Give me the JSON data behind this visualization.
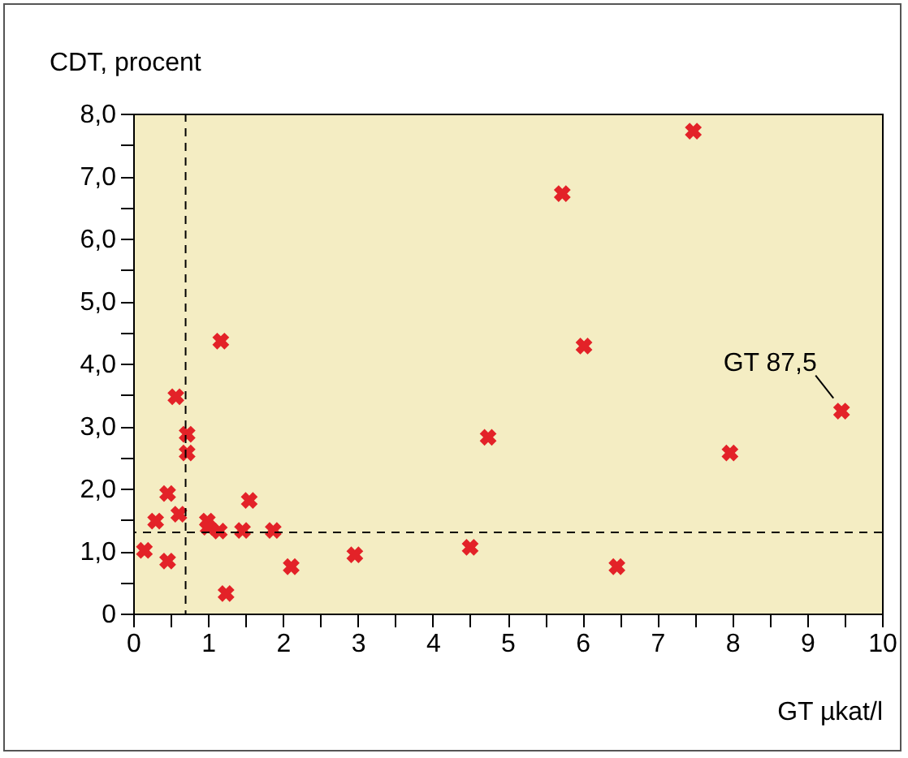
{
  "chart_data": {
    "type": "scatter",
    "xlabel": "GT µkat/l",
    "ylabel": "CDT, procent",
    "x": [
      1.17,
      0.57,
      0.72,
      0.72,
      0.46,
      1.55,
      0.61,
      0.3,
      0.99,
      1.0,
      1.15,
      1.46,
      1.87,
      0.15,
      0.46,
      2.11,
      2.96,
      1.24,
      7.48,
      5.73,
      6.02,
      4.74,
      9.46,
      7.97,
      4.5,
      6.46
    ],
    "series": [
      {
        "color": "#e32228",
        "values": [
          4.36,
          3.47,
          2.87,
          2.57,
          1.92,
          1.81,
          1.59,
          1.48,
          1.48,
          1.38,
          1.32,
          1.33,
          1.33,
          1.01,
          0.84,
          0.75,
          0.94,
          0.32,
          7.72,
          6.72,
          4.28,
          2.82,
          3.24,
          2.57,
          1.06,
          0.75
        ]
      }
    ],
    "xlim": [
      0,
      10
    ],
    "xticks": [
      0,
      {
        "value": 0.5,
        "label": null
      },
      1,
      {
        "value": 1.5,
        "label": null
      },
      2,
      {
        "value": 2.5,
        "label": null
      },
      3,
      {
        "value": 3.5,
        "label": null
      },
      4,
      {
        "value": 4.5,
        "label": null
      },
      5,
      {
        "value": 5.5,
        "label": null
      },
      6,
      {
        "value": 6.5,
        "label": null
      },
      7,
      {
        "value": 7.5,
        "label": null
      },
      8,
      {
        "value": 8.5,
        "label": null
      },
      9,
      {
        "value": 9.5,
        "label": null
      },
      10
    ],
    "ylim": [
      0,
      8
    ],
    "yticks": [
      0,
      {
        "value": 0.5,
        "label": null
      },
      {
        "value": 1,
        "label": "1,0"
      },
      {
        "value": 1.5,
        "label": null
      },
      {
        "value": 2,
        "label": "2,0"
      },
      {
        "value": 2.5,
        "label": null
      },
      {
        "value": 3,
        "label": "3,0"
      },
      {
        "value": 3.5,
        "label": null
      },
      {
        "value": 4,
        "label": "4,0"
      },
      {
        "value": 4.5,
        "label": null
      },
      {
        "value": 5,
        "label": "5,0"
      },
      {
        "value": 5.5,
        "label": null
      },
      {
        "value": 6,
        "label": "6,0"
      },
      {
        "value": 6.5,
        "label": null
      },
      {
        "value": 7,
        "label": "7,0"
      },
      {
        "value": 7.5,
        "label": null
      },
      {
        "value": 8,
        "label": "8,0"
      }
    ],
    "ref_lines": [
      {
        "axis": "x",
        "value": 0.7,
        "line_style": "dashed",
        "color": "#000000"
      },
      {
        "axis": "y",
        "value": 1.3,
        "line_style": "dashed",
        "color": "#000000"
      }
    ],
    "annotations": [
      {
        "text": "GT 87,5",
        "x": 9.46,
        "y": 3.24
      }
    ],
    "marker": "cross",
    "grid": false
  }
}
